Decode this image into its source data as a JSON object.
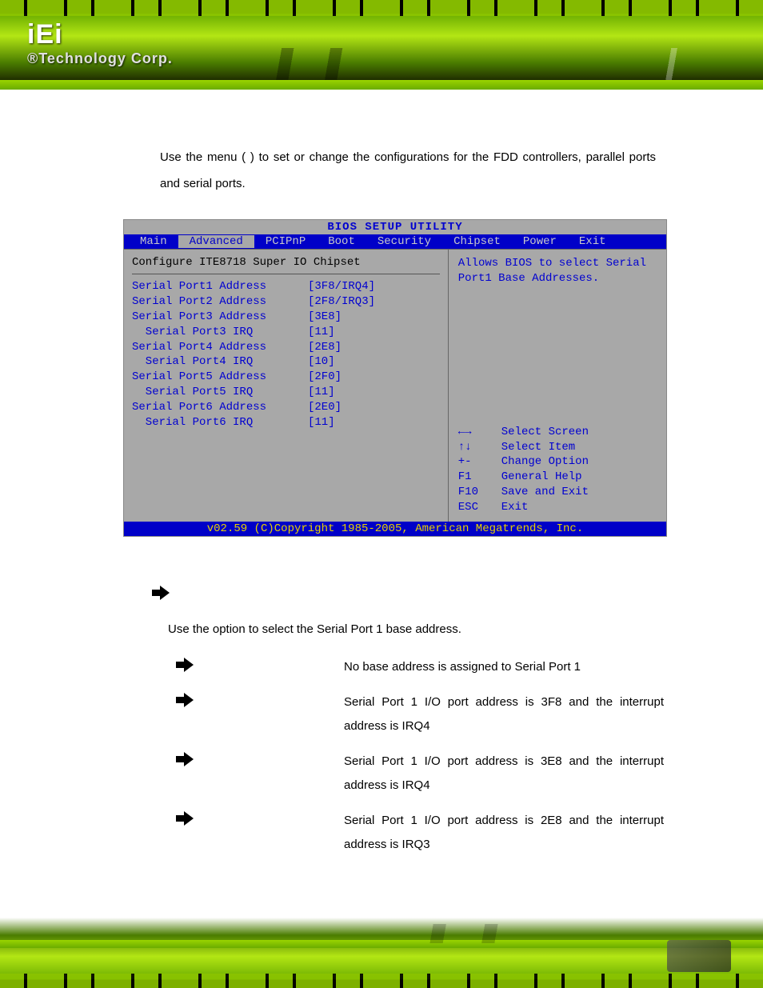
{
  "header": {
    "logo_main": "iEi",
    "logo_sub": "®Technology Corp."
  },
  "intro": {
    "text": "Use  the                                           menu  (                        )  to  set  or  change  the configurations for the FDD controllers, parallel ports and serial ports."
  },
  "bios": {
    "title": "BIOS SETUP UTILITY",
    "tabs": [
      "Main",
      "Advanced",
      "PCIPnP",
      "Boot",
      "Security",
      "Chipset",
      "Power",
      "Exit"
    ],
    "active_tab_index": 1,
    "config_heading": "Configure ITE8718 Super IO Chipset",
    "rows": [
      {
        "label": "Serial Port1 Address",
        "value": "[3F8/IRQ4]",
        "indent": false
      },
      {
        "label": "Serial Port2 Address",
        "value": "[2F8/IRQ3]",
        "indent": false
      },
      {
        "label": "Serial Port3 Address",
        "value": "[3E8]",
        "indent": false
      },
      {
        "label": "Serial Port3 IRQ",
        "value": "[11]",
        "indent": true
      },
      {
        "label": "Serial Port4 Address",
        "value": "[2E8]",
        "indent": false
      },
      {
        "label": "Serial Port4 IRQ",
        "value": "[10]",
        "indent": true
      },
      {
        "label": "Serial Port5 Address",
        "value": "[2F0]",
        "indent": false
      },
      {
        "label": "Serial Port5 IRQ",
        "value": "[11]",
        "indent": true
      },
      {
        "label": "Serial Port6 Address",
        "value": "[2E0]",
        "indent": false
      },
      {
        "label": "Serial Port6 IRQ",
        "value": "[11]",
        "indent": true
      }
    ],
    "help_text": "Allows BIOS to select Serial Port1 Base Addresses.",
    "nav": [
      {
        "key": "←→",
        "action": "Select Screen"
      },
      {
        "key": "↑↓",
        "action": "Select Item"
      },
      {
        "key": "+-",
        "action": "Change Option"
      },
      {
        "key": "F1",
        "action": "General Help"
      },
      {
        "key": "F10",
        "action": "Save and Exit"
      },
      {
        "key": "ESC",
        "action": "Exit"
      }
    ],
    "footer": "v02.59 (C)Copyright 1985-2005, American Megatrends, Inc."
  },
  "section": {
    "use_line": "Use the                                         option to select the Serial Port 1 base address.",
    "options": [
      {
        "desc": "No base address is assigned to Serial Port 1"
      },
      {
        "desc": "Serial Port 1 I/O port address is 3F8 and the interrupt address is IRQ4"
      },
      {
        "desc": "Serial Port 1 I/O port address is 3E8 and the interrupt address is IRQ4"
      },
      {
        "desc": "Serial Port 1 I/O port address is 2E8 and the interrupt address is IRQ3"
      }
    ]
  },
  "colors": {
    "bios_bg": "#a8a8a8",
    "bios_blue": "#0000c8",
    "bios_text": "#0000d0",
    "bios_footer_text": "#e8d000",
    "page_bg": "#ffffff",
    "banner_green1": "#b3e614",
    "banner_green2": "#6aac00"
  }
}
